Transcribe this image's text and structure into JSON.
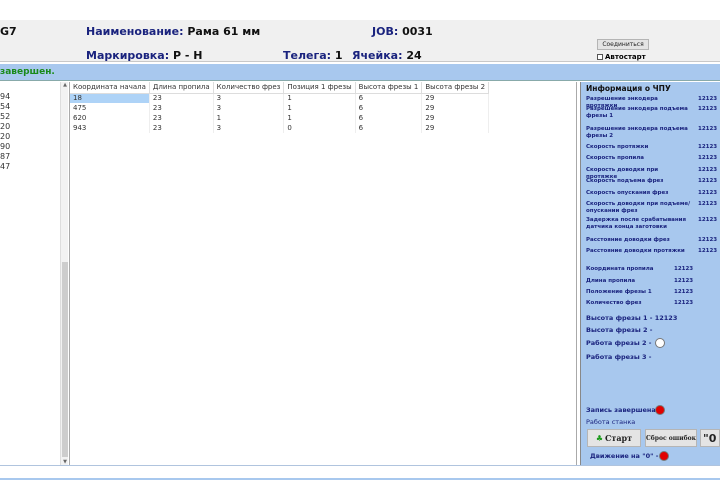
{
  "header": {
    "left_code": "G7",
    "name_label": "Наименование:",
    "name_value": "Рама 61 мм",
    "job_label": "JOB:",
    "job_value": "0031",
    "mark_label": "Маркировка:",
    "mark_value": "Р - Н",
    "cart_label": "Телега:",
    "cart_value": "1",
    "cell_label": "Ячейка:",
    "cell_value": "24",
    "connect_button": "Соединиться",
    "autostart_label": "Автостарт",
    "autostart_checked": false
  },
  "status": {
    "text": "завершен.",
    "color": "#1a8a1a"
  },
  "left_list": [
    "94",
    "54",
    "52",
    "20",
    "20",
    "90",
    "87",
    "47"
  ],
  "table": {
    "columns": [
      "Координата начала",
      "Длина пропила",
      "Количество фрез",
      "Позиция 1 фрезы",
      "Высота фрезы 1",
      "Высота фрезы 2"
    ],
    "rows": [
      [
        "18",
        "23",
        "3",
        "1",
        "6",
        "29"
      ],
      [
        "475",
        "23",
        "3",
        "1",
        "6",
        "29"
      ],
      [
        "620",
        "23",
        "1",
        "1",
        "6",
        "29"
      ],
      [
        "943",
        "23",
        "3",
        "0",
        "6",
        "29"
      ]
    ]
  },
  "panel": {
    "title": "Информация о ЧПУ",
    "params": [
      {
        "label": "Разрешение энкодера протяжки",
        "value": "12123"
      },
      {
        "label": "Разрешение энкодера подъема фрезы 1",
        "value": "12123"
      },
      {
        "label": "Разрешение энкодера подъема фрезы 2",
        "value": "12123"
      },
      {
        "label": "Скорость протяжки",
        "value": "12123"
      },
      {
        "label": "Скорость пропила",
        "value": "12123"
      },
      {
        "label": "Скорость доводки при протяжке",
        "value": "12123"
      },
      {
        "label": "Скорость подъема фрез",
        "value": "12123"
      },
      {
        "label": "Скорость опускания фрез",
        "value": "12123"
      },
      {
        "label": "Скорость доводки при подъеме/опускании фрез",
        "value": "12123"
      },
      {
        "label": "Задержка после срабатывания датчика конца заготовки",
        "value": "12123"
      },
      {
        "label": "Расстояние доводки фрез",
        "value": "12123"
      },
      {
        "label": "Расстояние доводки протяжки",
        "value": "12123"
      }
    ],
    "current": [
      {
        "label": "Координата пропила",
        "value": "12123"
      },
      {
        "label": "Длина пропила",
        "value": "12123"
      },
      {
        "label": "Положение фрезы 1",
        "value": "12123"
      },
      {
        "label": "Количество фрез",
        "value": "12123"
      }
    ],
    "mill1_height": "Высота фрезы 1 - 12123",
    "mill2_height": "Высота фрезы 2 -",
    "mill2_work": "Работа фрезы 2 -",
    "mill3_work": "Работа фрезы 3 -",
    "record_done": "Запись завершена",
    "machine_work": "Работа станка",
    "start_button": "Старт",
    "reset_button": "Сброс ошибок",
    "zero_button": "\"0",
    "move_zero": "Движение на \"0\" -",
    "colors": {
      "led_red": "#e00000",
      "led_white": "#ffffff",
      "start_icon": "#1a9a1a"
    }
  }
}
